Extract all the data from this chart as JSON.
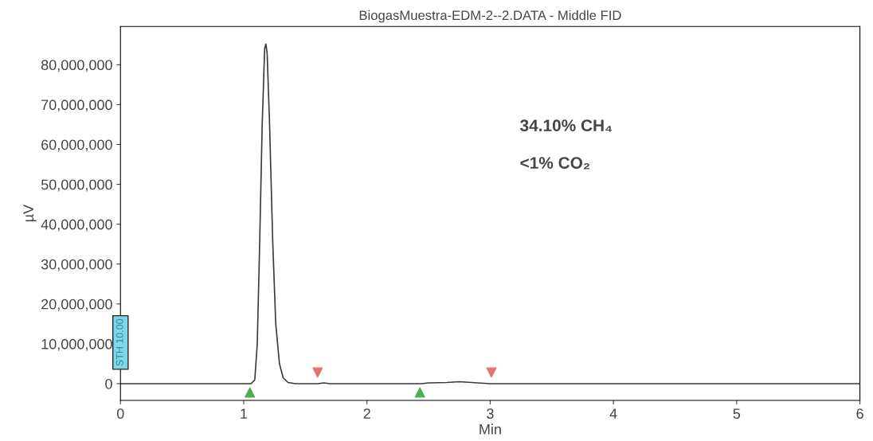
{
  "chart_data": {
    "type": "line",
    "title": "BiogasMuestra-EDM-2--2.DATA - Middle FID",
    "xlabel": "Min",
    "ylabel": "µV",
    "xlim": [
      0,
      6
    ],
    "xticks": [
      0,
      1,
      2,
      3,
      4,
      5,
      6
    ],
    "ylim": [
      -4200000,
      89600000
    ],
    "yticks": [
      {
        "value": 0,
        "label": "0"
      },
      {
        "value": 10000000,
        "label": "10,000,000"
      },
      {
        "value": 20000000,
        "label": "20,000,000"
      },
      {
        "value": 30000000,
        "label": "30,000,000"
      },
      {
        "value": 40000000,
        "label": "40,000,000"
      },
      {
        "value": 50000000,
        "label": "50,000,000"
      },
      {
        "value": 60000000,
        "label": "60,000,000"
      },
      {
        "value": 70000000,
        "label": "70,000,000"
      },
      {
        "value": 80000000,
        "label": "80,000,000"
      }
    ],
    "grid": false,
    "series": [
      {
        "color": "#3a3a3a",
        "x": [
          0,
          1.0,
          1.06,
          1.09,
          1.11,
          1.13,
          1.15,
          1.17,
          1.18,
          1.19,
          1.21,
          1.235,
          1.26,
          1.29,
          1.32,
          1.36,
          1.42,
          1.6,
          1.65,
          1.7,
          2.44,
          2.5,
          2.65,
          2.75,
          2.85,
          3.0,
          6.0
        ],
        "values": [
          0,
          0,
          0,
          1000000,
          10000000,
          36000000,
          65000000,
          84000000,
          85200000,
          83000000,
          65000000,
          36000000,
          15000000,
          5000000,
          1500000,
          300000,
          0,
          0,
          200000,
          0,
          0,
          200000,
          300000,
          500000,
          300000,
          0,
          0
        ]
      },
      {
        "type": "scatter",
        "marker": "triangle",
        "color": "#4caf50",
        "x": [
          1.05,
          2.43
        ],
        "values": [
          -2200000,
          -2200000
        ]
      },
      {
        "type": "scatter",
        "marker": "triangle_down",
        "color": "#e57373",
        "x": [
          1.6,
          3.01
        ],
        "values": [
          2800000,
          2800000
        ]
      }
    ],
    "annotations": [
      "STH 10.00",
      "34.10% CH₄",
      "<1% CO₂"
    ]
  }
}
